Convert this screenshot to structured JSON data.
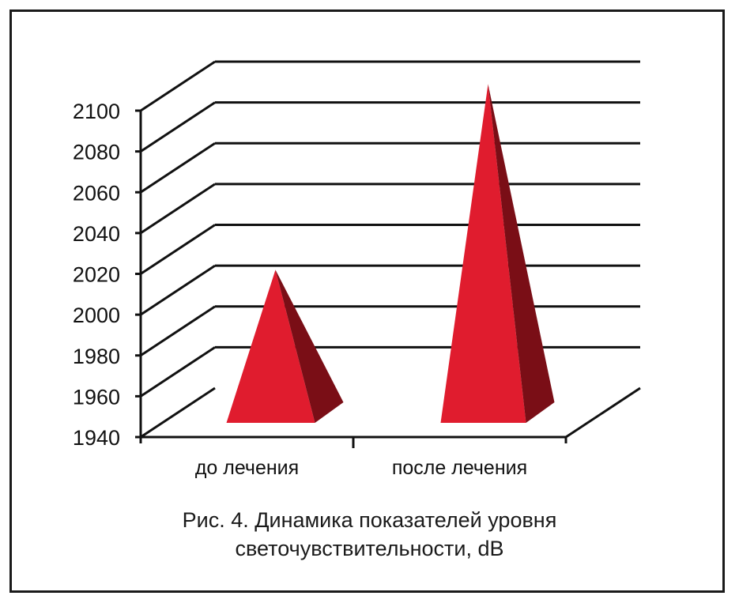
{
  "chart_data": {
    "type": "bar",
    "shape": "pyramid-3d",
    "categories": [
      "до лечения",
      "после лечения"
    ],
    "values": [
      2010,
      2101
    ],
    "ylim": [
      1940,
      2100
    ],
    "yticks": [
      1940,
      1960,
      1980,
      2000,
      2020,
      2040,
      2060,
      2080,
      2100
    ],
    "ytick_labels": [
      "1940",
      "1960",
      "1980",
      "2000",
      "2020",
      "2040",
      "2060",
      "2080",
      "2100"
    ],
    "grid": true,
    "legend": "none",
    "colors": {
      "front": "#e01c2e",
      "side": "#7a0e16",
      "grid": "#111111"
    }
  },
  "caption": {
    "line1": "Рис. 4. Динамика показателей уровня",
    "line2": "светочувствительности, dB"
  }
}
